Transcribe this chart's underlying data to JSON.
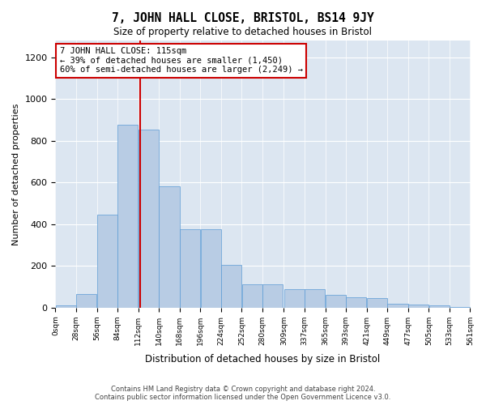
{
  "title": "7, JOHN HALL CLOSE, BRISTOL, BS14 9JY",
  "subtitle": "Size of property relative to detached houses in Bristol",
  "xlabel": "Distribution of detached houses by size in Bristol",
  "ylabel": "Number of detached properties",
  "bar_color": "#b8cce4",
  "bar_edge_color": "#5b9bd5",
  "background_color": "#dce6f1",
  "annotation_line_color": "#cc0000",
  "annotation_box_color": "#cc0000",
  "property_size": 115,
  "annotation_text_line1": "7 JOHN HALL CLOSE: 115sqm",
  "annotation_text_line2": "← 39% of detached houses are smaller (1,450)",
  "annotation_text_line3": "60% of semi-detached houses are larger (2,249) →",
  "footer_line1": "Contains HM Land Registry data © Crown copyright and database right 2024.",
  "footer_line2": "Contains public sector information licensed under the Open Government Licence v3.0.",
  "bins": [
    0,
    28,
    56,
    84,
    112,
    140,
    168,
    196,
    224,
    252,
    280,
    309,
    337,
    365,
    393,
    421,
    449,
    477,
    505,
    533,
    561
  ],
  "counts": [
    10,
    65,
    445,
    875,
    855,
    580,
    375,
    375,
    205,
    110,
    110,
    90,
    90,
    60,
    50,
    45,
    20,
    15,
    12,
    5,
    3
  ],
  "ylim": [
    0,
    1280
  ],
  "yticks": [
    0,
    200,
    400,
    600,
    800,
    1000,
    1200
  ]
}
